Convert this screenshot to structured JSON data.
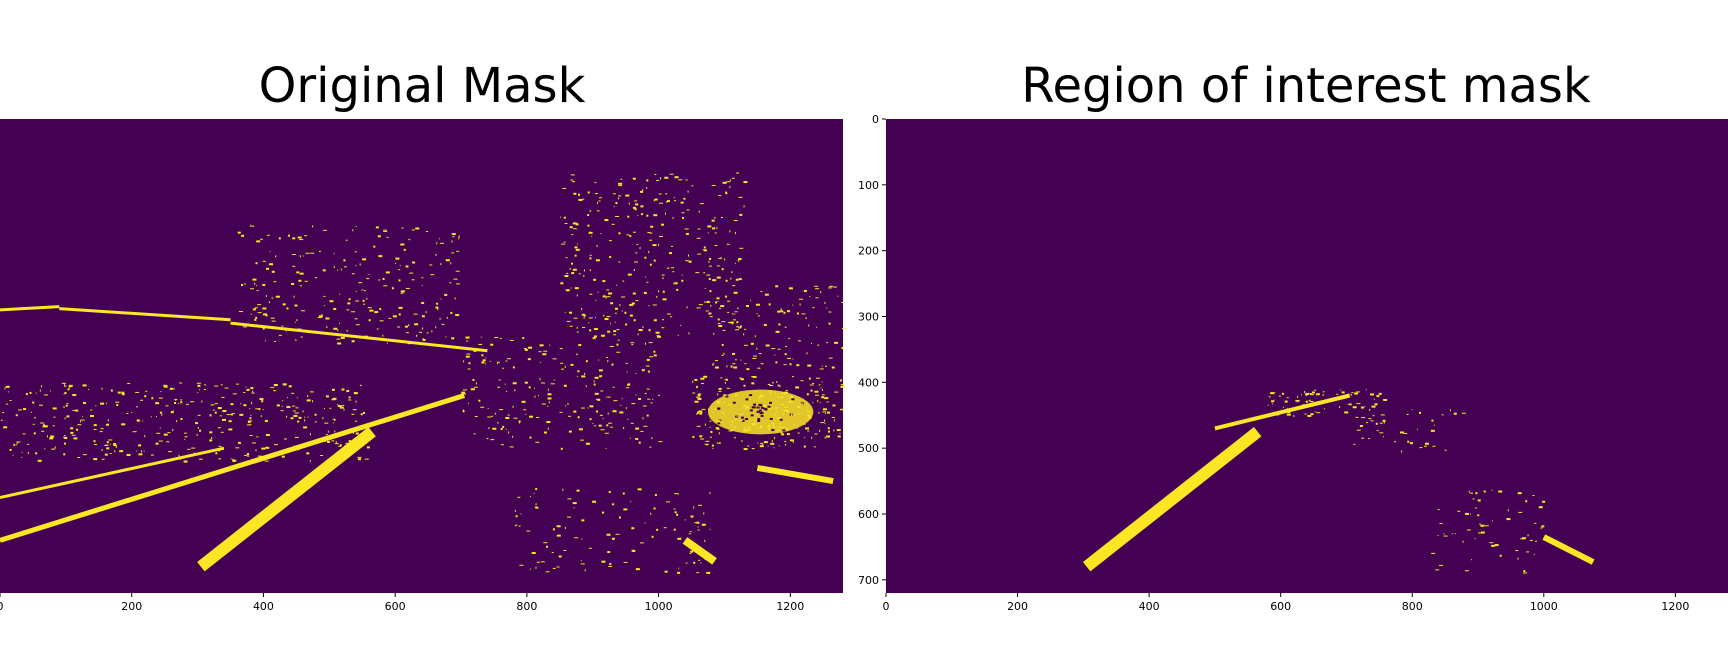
{
  "chart_data": [
    {
      "type": "heatmap",
      "title": "Original Mask",
      "xlim": [
        0,
        1280
      ],
      "ylim": [
        720,
        0
      ],
      "xticks": [
        0,
        200,
        400,
        600,
        800,
        1000,
        1200
      ],
      "yticks": [],
      "colors": {
        "background": "#440154",
        "foreground": "#fde725"
      },
      "features": {
        "lane_lines": [
          {
            "x": [
              0,
              705
            ],
            "y": [
              640,
              420
            ],
            "width": 5
          },
          {
            "x": [
              305,
              565
            ],
            "y": [
              680,
              475
            ],
            "width": 12
          },
          {
            "x": [
              1150,
              1265
            ],
            "y": [
              530,
              550
            ],
            "width": 6
          },
          {
            "x": [
              1040,
              1085
            ],
            "y": [
              640,
              672
            ],
            "width": 8
          },
          {
            "x": [
              0,
              340
            ],
            "y": [
              575,
              500
            ],
            "width": 3
          },
          {
            "x": [
              0,
              90
            ],
            "y": [
              290,
              285
            ],
            "width": 3
          },
          {
            "x": [
              90,
              350
            ],
            "y": [
              288,
              305
            ],
            "width": 3
          },
          {
            "x": [
              350,
              740
            ],
            "y": [
              310,
              352
            ],
            "width": 3
          }
        ],
        "noise_regions": [
          {
            "x": [
              0,
              560
            ],
            "y": [
              400,
              520
            ],
            "n": 380
          },
          {
            "x": [
              360,
              700
            ],
            "y": [
              160,
              340
            ],
            "n": 230
          },
          {
            "x": [
              850,
              1130
            ],
            "y": [
              80,
              330
            ],
            "n": 320
          },
          {
            "x": [
              700,
              1000
            ],
            "y": [
              330,
              500
            ],
            "n": 220
          },
          {
            "x": [
              1050,
              1280
            ],
            "y": [
              390,
              500
            ],
            "n": 220
          },
          {
            "x": [
              780,
              1080
            ],
            "y": [
              560,
              690
            ],
            "n": 110
          },
          {
            "x": [
              1080,
              1280
            ],
            "y": [
              250,
              380
            ],
            "n": 110
          }
        ],
        "blobs": [
          {
            "cx": 1155,
            "cy": 445,
            "rx": 80,
            "ry": 34
          }
        ]
      }
    },
    {
      "type": "heatmap",
      "title": "Region of interest mask",
      "xlim": [
        0,
        1280
      ],
      "ylim": [
        720,
        0
      ],
      "xticks": [
        0,
        200,
        400,
        600,
        800,
        1000,
        1200
      ],
      "yticks": [
        0,
        100,
        200,
        300,
        400,
        500,
        600,
        700
      ],
      "colors": {
        "background": "#440154",
        "foreground": "#fde725"
      },
      "features": {
        "lane_lines": [
          {
            "x": [
              305,
              565
            ],
            "y": [
              680,
              475
            ],
            "width": 12
          },
          {
            "x": [
              500,
              705
            ],
            "y": [
              470,
              420
            ],
            "width": 4
          },
          {
            "x": [
              1000,
              1075
            ],
            "y": [
              635,
              673
            ],
            "width": 6
          }
        ],
        "noise_regions": [
          {
            "x": [
              580,
              760
            ],
            "y": [
              410,
              450
            ],
            "n": 70
          },
          {
            "x": [
              710,
              880
            ],
            "y": [
              440,
              505
            ],
            "n": 40
          },
          {
            "x": [
              820,
              1000
            ],
            "y": [
              560,
              690
            ],
            "n": 60
          }
        ],
        "blobs": []
      }
    }
  ]
}
